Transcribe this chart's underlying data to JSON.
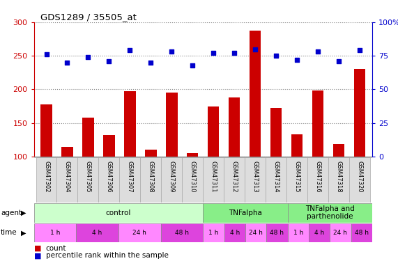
{
  "title": "GDS1289 / 35505_at",
  "samples": [
    "GSM47302",
    "GSM47304",
    "GSM47305",
    "GSM47306",
    "GSM47307",
    "GSM47308",
    "GSM47309",
    "GSM47310",
    "GSM47311",
    "GSM47312",
    "GSM47313",
    "GSM47314",
    "GSM47315",
    "GSM47316",
    "GSM47318",
    "GSM47320"
  ],
  "counts": [
    178,
    115,
    158,
    132,
    197,
    110,
    195,
    105,
    175,
    188,
    287,
    173,
    133,
    198,
    119,
    231
  ],
  "percentiles": [
    76,
    70,
    74,
    71,
    79,
    70,
    78,
    68,
    77,
    77,
    80,
    75,
    72,
    78,
    71,
    79
  ],
  "bar_color": "#cc0000",
  "dot_color": "#0000cc",
  "ylim_left": [
    100,
    300
  ],
  "ylim_right": [
    0,
    100
  ],
  "yticks_left": [
    100,
    150,
    200,
    250,
    300
  ],
  "yticks_right": [
    0,
    25,
    50,
    75,
    100
  ],
  "agent_spans": [
    {
      "label": "control",
      "start": 0,
      "end": 8,
      "color": "#ccffcc"
    },
    {
      "label": "TNFalpha",
      "start": 8,
      "end": 12,
      "color": "#88ee88"
    },
    {
      "label": "TNFalpha and\nparthenolide",
      "start": 12,
      "end": 16,
      "color": "#88ee88"
    }
  ],
  "time_spans": [
    {
      "label": "1 h",
      "start": 0,
      "end": 2,
      "color": "#ff88ff"
    },
    {
      "label": "4 h",
      "start": 2,
      "end": 4,
      "color": "#dd44dd"
    },
    {
      "label": "24 h",
      "start": 4,
      "end": 6,
      "color": "#ff88ff"
    },
    {
      "label": "48 h",
      "start": 6,
      "end": 8,
      "color": "#dd44dd"
    },
    {
      "label": "1 h",
      "start": 8,
      "end": 9,
      "color": "#ff88ff"
    },
    {
      "label": "4 h",
      "start": 9,
      "end": 10,
      "color": "#dd44dd"
    },
    {
      "label": "24 h",
      "start": 10,
      "end": 11,
      "color": "#ff88ff"
    },
    {
      "label": "48 h",
      "start": 11,
      "end": 12,
      "color": "#dd44dd"
    },
    {
      "label": "1 h",
      "start": 12,
      "end": 13,
      "color": "#ff88ff"
    },
    {
      "label": "4 h",
      "start": 13,
      "end": 14,
      "color": "#dd44dd"
    },
    {
      "label": "24 h",
      "start": 14,
      "end": 15,
      "color": "#ff88ff"
    },
    {
      "label": "48 h",
      "start": 15,
      "end": 16,
      "color": "#dd44dd"
    }
  ],
  "bar_color_left": "#cc0000",
  "right_axis_color": "#0000cc",
  "grid_color": "#888888",
  "sample_bg": "#dddddd",
  "legend_count": "count",
  "legend_pct": "percentile rank within the sample"
}
